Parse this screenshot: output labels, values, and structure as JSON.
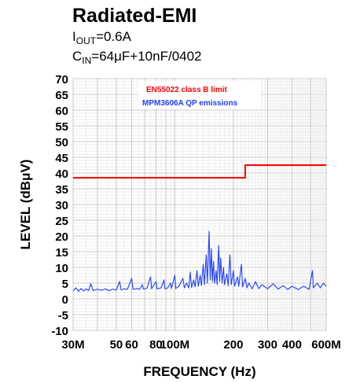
{
  "title": "Radiated-EMI",
  "subtitle_iout": {
    "symbol": "I",
    "sub": "OUT",
    "value": "=0.6A"
  },
  "subtitle_cin": {
    "symbol": "C",
    "sub": "IN",
    "value": "=64μF+10nF/0402"
  },
  "chart_data": {
    "type": "line",
    "xlabel": "FREQUENCY (Hz)",
    "ylabel": "LEVEL (dBμV)",
    "xscale": "log",
    "xlim": [
      30,
      600
    ],
    "ylim": [
      -10,
      70
    ],
    "grid": true,
    "legend_placement": "top-center",
    "x_ticks": [
      {
        "value": 30,
        "label": "30M"
      },
      {
        "value": 50,
        "label": "50"
      },
      {
        "value": 60,
        "label": "60"
      },
      {
        "value": 80,
        "label": "80"
      },
      {
        "value": 100,
        "label": "100M"
      },
      {
        "value": 200,
        "label": "200"
      },
      {
        "value": 300,
        "label": "300"
      },
      {
        "value": 400,
        "label": "400"
      },
      {
        "value": 600,
        "label": "600M"
      }
    ],
    "y_ticks": [
      70,
      65,
      60,
      55,
      50,
      45,
      40,
      35,
      30,
      25,
      20,
      15,
      10,
      5,
      0,
      -5,
      -10
    ],
    "series": [
      {
        "name": "EN55022 class B limit",
        "color": "#ff0000",
        "points": [
          [
            30,
            38.5
          ],
          [
            230,
            38.5
          ],
          [
            230,
            42.5
          ],
          [
            600,
            42.5
          ]
        ]
      },
      {
        "name": "MPM3606A QP emissions",
        "color": "#1f3fff",
        "points": [
          [
            30,
            2.5
          ],
          [
            31,
            3.5
          ],
          [
            32,
            2.4
          ],
          [
            33,
            3.3
          ],
          [
            34,
            2.5
          ],
          [
            35,
            3.2
          ],
          [
            36,
            2.6
          ],
          [
            37,
            4.8
          ],
          [
            38,
            2.6
          ],
          [
            40,
            3.1
          ],
          [
            42,
            2.7
          ],
          [
            44,
            3.2
          ],
          [
            46,
            2.6
          ],
          [
            48,
            3.1
          ],
          [
            50,
            2.8
          ],
          [
            52,
            5.5
          ],
          [
            53,
            2.8
          ],
          [
            55,
            3.2
          ],
          [
            57,
            3.0
          ],
          [
            60,
            6.5
          ],
          [
            61,
            3.0
          ],
          [
            64,
            3.3
          ],
          [
            66,
            3.0
          ],
          [
            68,
            4.5
          ],
          [
            69,
            3.1
          ],
          [
            72,
            3.4
          ],
          [
            75,
            7.0
          ],
          [
            76,
            3.2
          ],
          [
            80,
            5.5
          ],
          [
            81,
            3.2
          ],
          [
            85,
            3.5
          ],
          [
            88,
            6.0
          ],
          [
            89,
            3.2
          ],
          [
            92,
            3.5
          ],
          [
            95,
            5.0
          ],
          [
            96,
            3.3
          ],
          [
            100,
            7.5
          ],
          [
            101,
            3.3
          ],
          [
            105,
            4.0
          ],
          [
            110,
            6.5
          ],
          [
            112,
            3.5
          ],
          [
            115,
            5.0
          ],
          [
            118,
            3.5
          ],
          [
            120,
            8.5
          ],
          [
            122,
            3.6
          ],
          [
            125,
            6.0
          ],
          [
            127,
            3.8
          ],
          [
            130,
            9.0
          ],
          [
            132,
            4.0
          ],
          [
            135,
            7.5
          ],
          [
            137,
            4.2
          ],
          [
            140,
            11.0
          ],
          [
            142,
            4.5
          ],
          [
            145,
            14.0
          ],
          [
            147,
            5.0
          ],
          [
            150,
            21.5
          ],
          [
            152,
            6.0
          ],
          [
            154,
            16.0
          ],
          [
            156,
            5.5
          ],
          [
            158,
            12.0
          ],
          [
            160,
            5.0
          ],
          [
            163,
            9.0
          ],
          [
            165,
            4.5
          ],
          [
            168,
            17.0
          ],
          [
            170,
            5.5
          ],
          [
            172,
            13.0
          ],
          [
            175,
            5.0
          ],
          [
            178,
            10.0
          ],
          [
            180,
            4.5
          ],
          [
            185,
            8.0
          ],
          [
            188,
            4.2
          ],
          [
            192,
            14.0
          ],
          [
            195,
            4.5
          ],
          [
            200,
            9.0
          ],
          [
            203,
            4.0
          ],
          [
            210,
            7.0
          ],
          [
            213,
            4.0
          ],
          [
            220,
            11.0
          ],
          [
            223,
            3.8
          ],
          [
            230,
            6.5
          ],
          [
            235,
            3.5
          ],
          [
            240,
            5.0
          ],
          [
            250,
            3.2
          ],
          [
            260,
            5.5
          ],
          [
            270,
            3.2
          ],
          [
            280,
            4.5
          ],
          [
            300,
            3.2
          ],
          [
            320,
            4.8
          ],
          [
            340,
            3.1
          ],
          [
            360,
            4.2
          ],
          [
            380,
            3.0
          ],
          [
            400,
            4.0
          ],
          [
            430,
            3.0
          ],
          [
            460,
            4.0
          ],
          [
            490,
            3.0
          ],
          [
            510,
            9.0
          ],
          [
            515,
            3.5
          ],
          [
            540,
            5.0
          ],
          [
            560,
            3.5
          ],
          [
            580,
            5.0
          ],
          [
            600,
            4.0
          ]
        ]
      }
    ]
  }
}
